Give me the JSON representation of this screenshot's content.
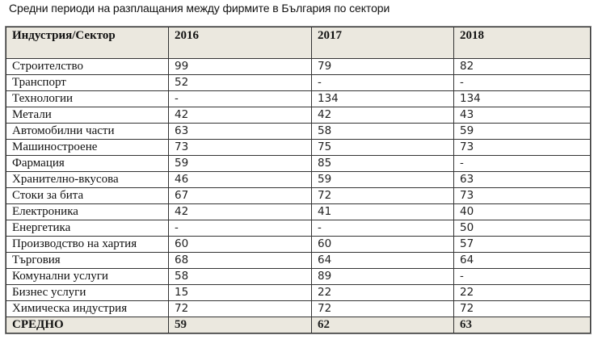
{
  "title": "Средни периоди на разплащания между фирмите в България по сектори",
  "table": {
    "headers": [
      "Индустрия/Сектор",
      "2016",
      "2017",
      "2018"
    ],
    "rows": [
      {
        "sector": "Строителство",
        "y2016": "99",
        "y2017": "79",
        "y2018": "82"
      },
      {
        "sector": "Транспорт",
        "y2016": "52",
        "y2017": "-",
        "y2018": "-"
      },
      {
        "sector": "Технологии",
        "y2016": "-",
        "y2017": "134",
        "y2018": "134"
      },
      {
        "sector": "Метали",
        "y2016": "42",
        "y2017": "42",
        "y2018": "43"
      },
      {
        "sector": "Автомобилни части",
        "y2016": "63",
        "y2017": "58",
        "y2018": "59"
      },
      {
        "sector": "Машиностроене",
        "y2016": "73",
        "y2017": "75",
        "y2018": "73"
      },
      {
        "sector": "Фармация",
        "y2016": "59",
        "y2017": "85",
        "y2018": "-"
      },
      {
        "sector": "Хранително-вкусова",
        "y2016": "46",
        "y2017": "59",
        "y2018": "63"
      },
      {
        "sector": "Стоки за бита",
        "y2016": "67",
        "y2017": "72",
        "y2018": "73"
      },
      {
        "sector": "Електроника",
        "y2016": "42",
        "y2017": "41",
        "y2018": "40"
      },
      {
        "sector": "Енергетика",
        "y2016": "-",
        "y2017": "-",
        "y2018": "50"
      },
      {
        "sector": "Производство на хартия",
        "y2016": "60",
        "y2017": "60",
        "y2018": "57"
      },
      {
        "sector": "Търговия",
        "y2016": "68",
        "y2017": "64",
        "y2018": "64"
      },
      {
        "sector": "Комунални услуги",
        "y2016": "58",
        "y2017": "89",
        "y2018": "-"
      },
      {
        "sector": "Бизнес услуги",
        "y2016": "15",
        "y2017": "22",
        "y2018": "22"
      },
      {
        "sector": "Химическа индустрия",
        "y2016": "72",
        "y2017": "72",
        "y2018": "72"
      }
    ],
    "average": {
      "label": "СРЕДНО",
      "y2016": "59",
      "y2017": "62",
      "y2018": "63"
    }
  },
  "colors": {
    "header_background": "#ebe8df",
    "border": "#333333"
  }
}
